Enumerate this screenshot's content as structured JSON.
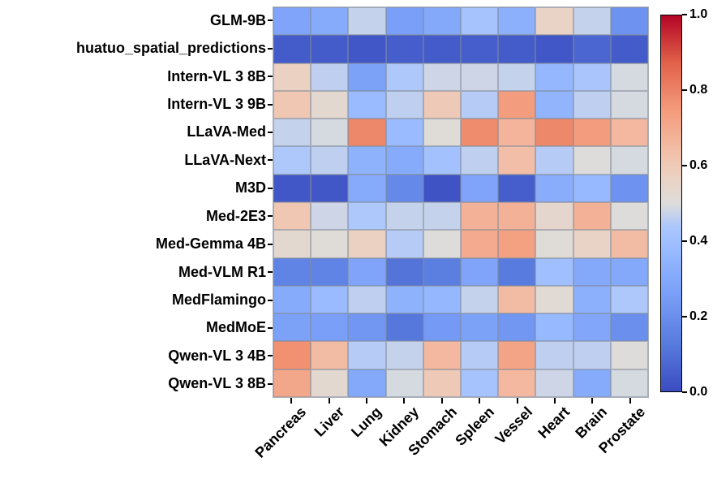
{
  "chart_data": {
    "type": "heatmap",
    "title": "",
    "xlabel": "",
    "ylabel": "",
    "x_categories": [
      "Pancreas",
      "Liver",
      "Lung",
      "Kidney",
      "Stomach",
      "Spleen",
      "Vessel",
      "Heart",
      "Brain",
      "Prostate"
    ],
    "y_categories": [
      "GLM-9B",
      "huatuo_spatial_predictions",
      "Intern-VL 3 8B",
      "Intern-VL 3 9B",
      "LLaVA-Med",
      "LLaVA-Next",
      "M3D",
      "Med-2E3",
      "Med-Gemma 4B",
      "Med-VLM R1",
      "MedFlamingo",
      "MedMoE",
      "Qwen-VL 3 4B",
      "Qwen-VL 3 8B"
    ],
    "values": [
      [
        0.28,
        0.31,
        0.47,
        0.26,
        0.3,
        0.42,
        0.33,
        0.56,
        0.47,
        0.21
      ],
      [
        0.04,
        0.04,
        0.03,
        0.05,
        0.04,
        0.05,
        0.04,
        0.03,
        0.07,
        0.04
      ],
      [
        0.57,
        0.46,
        0.27,
        0.44,
        0.48,
        0.48,
        0.47,
        0.36,
        0.43,
        0.49
      ],
      [
        0.61,
        0.53,
        0.38,
        0.46,
        0.6,
        0.45,
        0.74,
        0.35,
        0.46,
        0.49
      ],
      [
        0.47,
        0.49,
        0.79,
        0.38,
        0.51,
        0.78,
        0.67,
        0.79,
        0.74,
        0.66
      ],
      [
        0.44,
        0.46,
        0.34,
        0.31,
        0.41,
        0.46,
        0.64,
        0.45,
        0.5,
        0.49
      ],
      [
        0.03,
        0.03,
        0.31,
        0.18,
        0.02,
        0.28,
        0.05,
        0.32,
        0.37,
        0.21
      ],
      [
        0.61,
        0.48,
        0.44,
        0.47,
        0.47,
        0.68,
        0.68,
        0.54,
        0.68,
        0.5
      ],
      [
        0.53,
        0.51,
        0.57,
        0.45,
        0.5,
        0.7,
        0.73,
        0.51,
        0.56,
        0.65
      ],
      [
        0.16,
        0.16,
        0.28,
        0.11,
        0.14,
        0.28,
        0.13,
        0.4,
        0.3,
        0.3
      ],
      [
        0.31,
        0.38,
        0.46,
        0.34,
        0.36,
        0.47,
        0.65,
        0.52,
        0.33,
        0.44
      ],
      [
        0.27,
        0.26,
        0.23,
        0.12,
        0.24,
        0.27,
        0.23,
        0.37,
        0.29,
        0.2
      ],
      [
        0.77,
        0.65,
        0.45,
        0.47,
        0.66,
        0.45,
        0.72,
        0.46,
        0.46,
        0.5
      ],
      [
        0.71,
        0.53,
        0.3,
        0.49,
        0.6,
        0.42,
        0.66,
        0.48,
        0.31,
        0.49
      ]
    ],
    "value_range": [
      0.0,
      1.0
    ],
    "grid": true,
    "legend_position": "none",
    "colormap": {
      "name": "coolwarm",
      "anchors": [
        {
          "t": 0.0,
          "color": "#3B4CC0"
        },
        {
          "t": 0.125,
          "color": "#577ADE"
        },
        {
          "t": 0.25,
          "color": "#779DF7"
        },
        {
          "t": 0.375,
          "color": "#98BAFF"
        },
        {
          "t": 0.4375,
          "color": "#ACC7FC"
        },
        {
          "t": 0.5,
          "color": "#DDDCDB"
        },
        {
          "t": 0.5625,
          "color": "#EAD3C5"
        },
        {
          "t": 0.625,
          "color": "#F2C3AD"
        },
        {
          "t": 0.75,
          "color": "#F49A7A"
        },
        {
          "t": 0.875,
          "color": "#E16149"
        },
        {
          "t": 1.0,
          "color": "#B40426"
        }
      ]
    },
    "colorbar": {
      "position": "right",
      "tick_labels": [
        "0.0",
        "0.2",
        "0.4",
        "0.6",
        "0.8",
        "1.0"
      ],
      "tick_values": [
        0.0,
        0.2,
        0.4,
        0.6,
        0.8,
        1.0
      ]
    }
  }
}
